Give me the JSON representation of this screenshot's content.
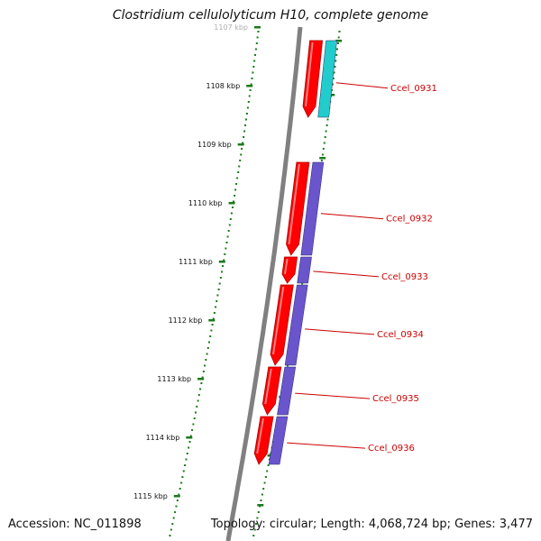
{
  "title": "Clostridium cellulolyticum H10, complete genome",
  "accession": "Accession: NC_011898",
  "topology": "Topology: circular; Length: 4,068,724 bp; Genes: 3,477",
  "scale_labels": [
    "1107 kbp",
    "1108 kbp",
    "1109 kbp",
    "1110 kbp",
    "1111 kbp",
    "1112 kbp",
    "1113 kbp",
    "1114 kbp",
    "1115 kbp"
  ],
  "genes": [
    {
      "name": "Ccel_0931",
      "strand": "+",
      "ring_color": "#22cccc"
    },
    {
      "name": "Ccel_0932",
      "strand": "+",
      "ring_color": "#6a55cc"
    },
    {
      "name": "Ccel_0933",
      "strand": "+",
      "ring_color": "#6a55cc"
    },
    {
      "name": "Ccel_0934",
      "strand": "+",
      "ring_color": "#6a55cc"
    },
    {
      "name": "Ccel_0935",
      "strand": "+",
      "ring_color": "#6a55cc"
    },
    {
      "name": "Ccel_0936",
      "strand": "+",
      "ring_color": "#6a55cc"
    }
  ],
  "colors": {
    "cds": "#ff0000",
    "backbone": "#808080",
    "ticks": "#1a7a1a",
    "label": "#cc0000"
  }
}
